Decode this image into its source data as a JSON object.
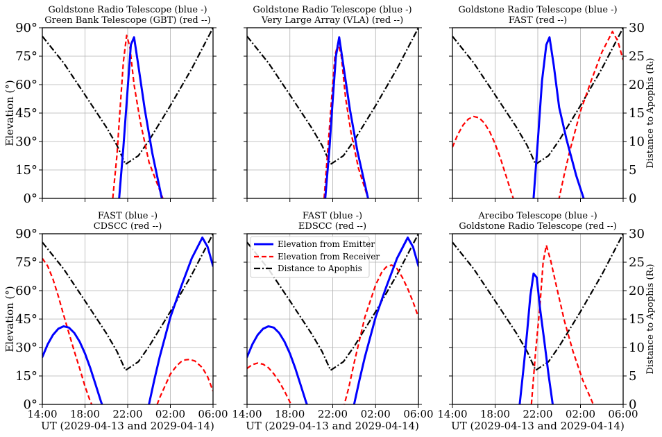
{
  "chart_data": {
    "type": "line",
    "x_unit": "hours since 2029-04-13 14:00 UT",
    "x_tick_labels": [
      "14:00",
      "18:00",
      "22:00",
      "02:00",
      "06:00"
    ],
    "xlabel": "UT (2029-04-13 and 2029-04-14)",
    "ylabel_left": "Elevation (°)",
    "ylabel_right": "Distance to Apophis (Rₜ)",
    "ylim_left": [
      0,
      90
    ],
    "ylim_right": [
      0,
      30
    ],
    "y_tick_labels_left": [
      "0°",
      "15°",
      "30°",
      "45°",
      "60°",
      "75°",
      "90°"
    ],
    "y_tick_labels_right": [
      "0",
      "5",
      "10",
      "15",
      "20",
      "25",
      "30"
    ],
    "grid": true,
    "legend": {
      "placement": "top-left of panel 5",
      "entries": [
        "Elevation from Emitter",
        "Elevation from Receiver",
        "Distance to Apophis"
      ]
    },
    "distance_series": {
      "name": "Distance to Apophis",
      "x": [
        0,
        2,
        4,
        6,
        7,
        7.8,
        9,
        10,
        12,
        14,
        16
      ],
      "y": [
        28.5,
        23.8,
        18.2,
        12.5,
        9.3,
        6.0,
        7.5,
        10.2,
        16.3,
        22.8,
        30
      ]
    },
    "panels": [
      {
        "title_line1": "Goldstone Radio Telescope (blue -)",
        "title_line2": "Green Bank Telescope (GBT) (red --)",
        "emitter": {
          "x": [
            7.2,
            7.6,
            8.0,
            8.3,
            8.6,
            9.0,
            9.6,
            10.3,
            11.2
          ],
          "y": [
            0,
            27,
            58,
            81,
            85,
            70,
            47,
            24,
            0
          ]
        },
        "receiver": {
          "x": [
            6.6,
            7.0,
            7.3,
            7.6,
            7.9,
            8.2,
            8.6,
            9.2,
            10.0,
            11.3
          ],
          "y": [
            0,
            23,
            48,
            72,
            86,
            80,
            60,
            40,
            19,
            0
          ]
        }
      },
      {
        "title_line1": "Goldstone Radio Telescope (blue -)",
        "title_line2": "Very Large Array (VLA) (red --)",
        "emitter": {
          "x": [
            7.3,
            7.7,
            8.0,
            8.3,
            8.6,
            9.0,
            9.6,
            10.3,
            11.3
          ],
          "y": [
            0,
            27,
            52,
            75,
            85,
            70,
            47,
            25,
            0
          ]
        },
        "receiver": {
          "x": [
            7.2,
            7.6,
            7.9,
            8.2,
            8.5,
            8.8,
            9.2,
            9.7,
            10.4,
            11.3
          ],
          "y": [
            0,
            30,
            53,
            75,
            82,
            75,
            53,
            35,
            16,
            0
          ]
        }
      },
      {
        "title_line1": "Goldstone Radio Telescope (blue -)",
        "title_line2": "FAST (red --)",
        "emitter": {
          "x": [
            7.6,
            8.0,
            8.4,
            8.8,
            9.1,
            9.5,
            10.0,
            10.7,
            11.6,
            12.3
          ],
          "y": [
            0,
            30,
            62,
            81,
            85,
            70,
            48,
            31,
            12,
            0
          ]
        },
        "receiver_parts": [
          {
            "x": [
              0,
              0.5,
              1.0,
              1.5,
              2.0,
              2.5,
              3.0,
              3.5,
              4.0,
              4.5,
              5.0,
              5.5,
              6.0,
              6.2
            ],
            "y": [
              27,
              33.7,
              38.7,
              41.9,
              43.2,
              42.5,
              39.7,
              35.1,
              28.8,
              21.1,
              12.3,
              3.4,
              -5,
              -9
            ]
          },
          {
            "x": [
              9.8,
              10.5,
              11.0,
              12.0,
              13.0,
              14.0,
              15.0,
              15.5,
              16.0
            ],
            "y": [
              -5,
              13,
              25,
              46,
              62,
              77,
              88,
              83,
              73
            ]
          }
        ]
      },
      {
        "title_line1": "FAST (blue -)",
        "title_line2": "CDSCC (red --)",
        "emitter_parts": [
          {
            "x": [
              0,
              0.5,
              1.0,
              1.5,
              2.0,
              2.5,
              3.0,
              3.5,
              4.0,
              4.5,
              5.0,
              5.5,
              6.0,
              6.2
            ],
            "y": [
              25,
              31.7,
              36.7,
              39.9,
              41.2,
              40.5,
              37.7,
              33.1,
              26.8,
              19.1,
              10.3,
              1.4,
              -6,
              -9
            ]
          },
          {
            "x": [
              9.8,
              10.5,
              11.0,
              12.0,
              13.0,
              14.0,
              15.0,
              15.5,
              16.0
            ],
            "y": [
              -5,
              13,
              25,
              46,
              62,
              77,
              88,
              83,
              73
            ]
          }
        ],
        "receiver_parts": [
          {
            "x": [
              0,
              0.5,
              1.0,
              1.5,
              2.0,
              2.5,
              3.0,
              3.5,
              4.0,
              4.5,
              5.0
            ],
            "y": [
              77,
              73,
              66,
              57,
              47,
              37.5,
              28,
              19,
              9.5,
              1.5,
              -4
            ]
          },
          {
            "x": [
              10.5,
              11.0,
              12.0,
              12.6,
              13.0,
              13.4,
              13.8,
              14.3,
              15.0,
              15.5,
              16.0
            ],
            "y": [
              -4,
              3.5,
              16,
              20.4,
              22.5,
              23.5,
              23.7,
              22.9,
              19.4,
              14.5,
              7
            ]
          }
        ]
      },
      {
        "title_line1": "FAST (blue -)",
        "title_line2": "EDSCC (red --)",
        "emitter_parts": [
          {
            "x": [
              0,
              0.5,
              1.0,
              1.5,
              2.0,
              2.5,
              3.0,
              3.5,
              4.0,
              4.5,
              5.0,
              5.5,
              6.0,
              6.2
            ],
            "y": [
              25,
              31.7,
              36.7,
              39.9,
              41.2,
              40.5,
              37.7,
              33.1,
              26.8,
              19.1,
              10.3,
              1.4,
              -6,
              -9
            ]
          },
          {
            "x": [
              9.8,
              10.5,
              11.0,
              12.0,
              13.0,
              14.0,
              15.0,
              15.5,
              16.0
            ],
            "y": [
              -5,
              13,
              25,
              46,
              62,
              77,
              88,
              83,
              73
            ]
          }
        ],
        "receiver_parts": [
          {
            "x": [
              0,
              0.5,
              1.0,
              1.5,
              2.0,
              2.5,
              3.0,
              3.5,
              4.0,
              4.5,
              5.0
            ],
            "y": [
              19,
              21,
              21.8,
              21.2,
              19.3,
              16.1,
              12.0,
              7.0,
              1.2,
              -5,
              -9
            ]
          },
          {
            "x": [
              8.8,
              9.5,
              10.0,
              11.0,
              12.0,
              12.6,
              13.0,
              13.5,
              14.0,
              14.5,
              15.0,
              15.5,
              16.0
            ],
            "y": [
              -6,
              9,
              22,
              46,
              63,
              70,
              72.5,
              73.5,
              71.6,
              67,
              61,
              54,
              46
            ]
          }
        ]
      },
      {
        "title_line1": "Arecibo Telescope (blue -)",
        "title_line2": "Goldstone Radio Telescope (red --)",
        "emitter": {
          "x": [
            6.3,
            6.7,
            7.0,
            7.3,
            7.6,
            7.9,
            8.2,
            8.6,
            9.0,
            9.4
          ],
          "y": [
            0,
            21,
            38,
            57,
            69,
            67,
            51,
            34,
            16,
            0
          ]
        },
        "receiver": {
          "x": [
            7.4,
            7.8,
            8.2,
            8.5,
            8.8,
            9.2,
            9.8,
            10.5,
            11.3,
            12.2,
            13.2
          ],
          "y": [
            0,
            28,
            52,
            75,
            84,
            76,
            61,
            44,
            28,
            13,
            0
          ]
        }
      }
    ]
  }
}
